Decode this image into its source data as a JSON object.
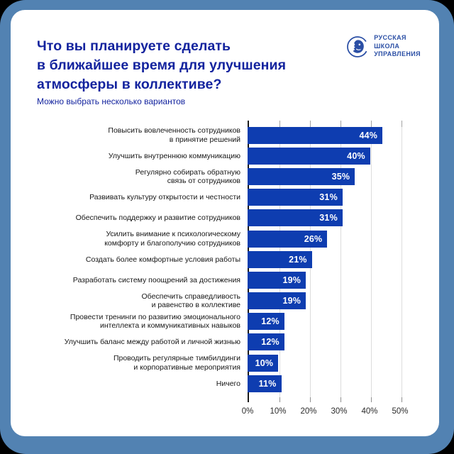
{
  "page": {
    "background": "#000000",
    "frame_color": "#5282b2",
    "card_color": "#ffffff"
  },
  "header": {
    "title": "Что вы планируете сделать\nв ближайшее время для улучшения\nатмосферы в коллективе?",
    "subtitle": "Можно выбрать несколько вариантов",
    "title_color": "#13239e"
  },
  "logo": {
    "text": "РУССКАЯ\nШКОЛА\nУПРАВЛЕНИЯ",
    "icon": "profile-in-ring-icon",
    "color": "#2b4fa5"
  },
  "chart_data": {
    "type": "bar",
    "orientation": "horizontal",
    "title": "Что вы планируете сделать в ближайшее время для улучшения атмосферы в коллективе?",
    "subtitle": "Можно выбрать несколько вариантов",
    "categories": [
      "Повысить вовлеченность сотрудников\nв принятие решений",
      "Улучшить внутреннюю коммуникацию",
      "Регулярно собирать обратную\nсвязь от сотрудников",
      "Развивать культуру открытости и честности",
      "Обеспечить поддержку и развитие сотрудников",
      "Усилить внимание к психологическому\nкомфорту и благополучию сотрудников",
      "Создать более комфортные условия работы",
      "Разработать систему поощрений за достижения",
      "Обеспечить справедливость\nи равенство в коллективе",
      "Провести тренинги по развитию эмоционального\nинтеллекта и коммуникативных навыков",
      "Улучшить баланс между работой и личной жизнью",
      "Проводить регулярные тимбилдинги\nи корпоративные мероприятия",
      "Ничего"
    ],
    "values": [
      44,
      40,
      35,
      31,
      31,
      26,
      21,
      19,
      19,
      12,
      12,
      10,
      11
    ],
    "value_suffix": "%",
    "xlim": [
      0,
      50
    ],
    "x_tick_labels": [
      "0%",
      "10%",
      "20%",
      "30%",
      "40%",
      "50%"
    ],
    "bar_color": "#0e3db0",
    "value_label_color": "#ffffff",
    "grid": "vertical",
    "grid_color": "#dcdcdc",
    "axis_color": "#1a1a1a",
    "legend": "none"
  }
}
